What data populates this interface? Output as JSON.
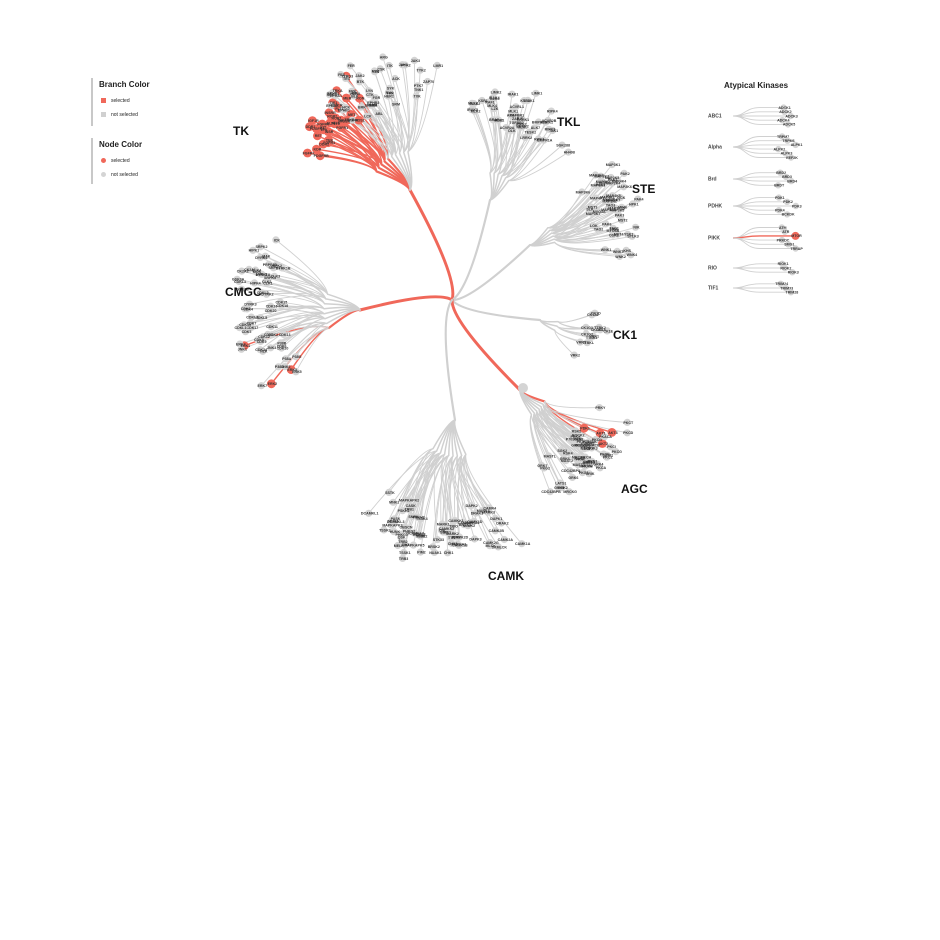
{
  "legend": {
    "branch_title": "Branch Color",
    "branch_selected": "selected",
    "branch_not_selected": "not selected",
    "node_title": "Node Color",
    "node_selected": "selected",
    "node_not_selected": "not selected"
  },
  "colors": {
    "selected": "#f0685a",
    "not_selected": "#d0d0d0",
    "node_not_selected": "#d4d4d4",
    "text": "#222222"
  },
  "groups": [
    {
      "name": "TK",
      "selected": true
    },
    {
      "name": "TKL",
      "selected": false
    },
    {
      "name": "STE",
      "selected": false
    },
    {
      "name": "CMGC",
      "selected": true
    },
    {
      "name": "CK1",
      "selected": false
    },
    {
      "name": "AGC",
      "selected": true
    },
    {
      "name": "CAMK",
      "selected": false
    }
  ],
  "kinase_labels": {
    "TK": [
      "FGFR1",
      "FGFR2",
      "FGFR3",
      "FGFR4",
      "RET",
      "PDGFRA",
      "PDGFRB",
      "KIT",
      "FLT3",
      "CSF1R",
      "KDR",
      "FLT1",
      "FLT4",
      "TIE1",
      "TEK",
      "MUSK",
      "INSR",
      "IGF1R",
      "INSRR",
      "ROS1",
      "LTK",
      "ALK",
      "DDR1",
      "DDR2",
      "TRKA",
      "TRKB",
      "TRKC",
      "ROR1",
      "ROR2",
      "MET",
      "RON",
      "AXL",
      "MER",
      "TYRO3",
      "EPHA1",
      "EPHA2",
      "EPHB1",
      "EPHB2",
      "EPHB3",
      "EPHB4",
      "EGFR",
      "HER2",
      "HER3",
      "HER4",
      "SRC",
      "YES",
      "FYN",
      "FGR",
      "LCK",
      "HCK",
      "BLK",
      "LYN",
      "FRK",
      "BRK",
      "SRM",
      "ABL",
      "ARG",
      "FES",
      "FER",
      "CSK",
      "CTK",
      "BTK",
      "TEC",
      "ITK",
      "BMX",
      "TXK",
      "JAK1",
      "JAK2",
      "JAK3",
      "TYK2",
      "FAK",
      "PYK2",
      "SYK",
      "ZAP70",
      "ACK",
      "TNK1",
      "PTK7",
      "RYK",
      "LMR1"
    ],
    "TKL": [
      "IRAK1",
      "IRAK2",
      "IRAK3",
      "IRAK4",
      "MLK1",
      "MLK2",
      "MLK3",
      "MLK4",
      "ZAK",
      "DLK",
      "LZK",
      "RAF1",
      "BRAF",
      "ARAF",
      "KSR1",
      "KSR2",
      "LIMK1",
      "LIMK2",
      "TESK1",
      "TESK2",
      "ALK1",
      "ALK2",
      "ALK4",
      "ALK7",
      "TGFBR1",
      "TGFBR2",
      "BMPR1A",
      "BMPR1B",
      "BMPR2",
      "ACVR2A",
      "ACVR2B",
      "ACVRL1",
      "MLKL",
      "RIPK1",
      "RIPK2",
      "RIPK3",
      "RIPK4",
      "LRRK1",
      "LRRK2",
      "ILK",
      "ANKK1",
      "SGK288",
      "TAK1",
      "HH498"
    ],
    "STE": [
      "MAP2K1",
      "MAP2K2",
      "MAP2K3",
      "MAP2K4",
      "MAP2K5",
      "MAP2K6",
      "MAP2K7",
      "MAP3K1",
      "MAP3K2",
      "MAP3K3",
      "MAP3K4",
      "MAP3K5",
      "MAP3K6",
      "MAP3K7",
      "MAP3K15",
      "MAP4K1",
      "MAP4K2",
      "MAP4K3",
      "MAP4K4",
      "MAP4K5",
      "PAK1",
      "PAK2",
      "PAK3",
      "PAK4",
      "PAK5",
      "PAK6",
      "MST1",
      "MST2",
      "MST3",
      "MST4",
      "SLK",
      "LOK",
      "TAO1",
      "TAO2",
      "TAO3",
      "OSR1",
      "STLK3",
      "YSK1",
      "MYO3A",
      "MYO3B",
      "TNIK",
      "MINK",
      "NIK",
      "HPK1",
      "GCK",
      "KHS",
      "WNK1",
      "WNK2",
      "WNK3",
      "WNK4"
    ],
    "CMGC": [
      "ERK1",
      "ERK2",
      "ERK3",
      "ERK4",
      "ERK5",
      "ERK7",
      "JNK1",
      "JNK2",
      "JNK3",
      "P38A",
      "P38B",
      "P38G",
      "P38D",
      "NLK",
      "CDK1",
      "CDK2",
      "CDK3",
      "CDK4",
      "CDK5",
      "CDK6",
      "CDK7",
      "CDK8",
      "CDK9",
      "CDK10",
      "CDK11",
      "CDK12",
      "CDK13",
      "CDK14",
      "CDK15",
      "CDK16",
      "CDK17",
      "CDK18",
      "CDK19",
      "CDK20",
      "CDKL1",
      "CDKL2",
      "CDKL3",
      "CDKL4",
      "CDKL5",
      "GSK3A",
      "GSK3B",
      "CK2A1",
      "CK2A2",
      "CLK1",
      "CLK2",
      "CLK3",
      "CLK4",
      "DYRK1A",
      "DYRK1B",
      "DYRK2",
      "DYRK3",
      "DYRK4",
      "HIPK1",
      "HIPK2",
      "HIPK3",
      "HIPK4",
      "PRPF4B",
      "SRPK1",
      "SRPK2",
      "SRPK3",
      "MAK",
      "ICK",
      "MOK"
    ],
    "CK1": [
      "CK1A",
      "CK1A2",
      "CK1D",
      "CK1E",
      "CK1G1",
      "CK1G2",
      "CK1G3",
      "TTBK1",
      "TTBK2",
      "VRK1",
      "VRK2",
      "VRK3",
      "TTBKL"
    ],
    "AGC": [
      "AKT1",
      "AKT2",
      "AKT3",
      "PDK1",
      "PKACA",
      "PKACB",
      "PKACG",
      "PRKX",
      "PRKY",
      "PKCA",
      "PKCB",
      "PKCG",
      "PKCD",
      "PKCE",
      "PKCH",
      "PKCT",
      "PKCI",
      "PKCZ",
      "PKN1",
      "PKN2",
      "PKN3",
      "RSK1",
      "RSK2",
      "RSK3",
      "RSK4",
      "MSK1",
      "MSK2",
      "P70S6K",
      "P70S6KB",
      "SGK1",
      "SGK2",
      "SGK3",
      "ROCK1",
      "ROCK2",
      "DMPK",
      "MRCKA",
      "MRCKB",
      "MRCKG",
      "CRIK",
      "LATS1",
      "LATS2",
      "NDR1",
      "NDR2",
      "MAST1",
      "MAST2",
      "MAST3",
      "MAST4",
      "MASTL",
      "GRK1",
      "GRK2",
      "GRK3",
      "GRK4",
      "GRK5",
      "GRK6",
      "GRK7",
      "PKG1",
      "PKG2",
      "CDC42BPA",
      "CDC42BPB"
    ],
    "CAMK": [
      "CAMK1A",
      "CAMK1B",
      "CAMK1D",
      "CAMK1G",
      "CAMK2A",
      "CAMK2B",
      "CAMK2D",
      "CAMK2G",
      "CAMK4",
      "CAMKK1",
      "CAMKK2",
      "DAPK1",
      "DAPK2",
      "DAPK3",
      "DRAK1",
      "DRAK2",
      "MLCK",
      "SKMLCK",
      "CHK1",
      "CHK2",
      "MARK1",
      "MARK2",
      "MARK3",
      "MARK4",
      "AMPKA1",
      "AMPKA2",
      "BRSK1",
      "BRSK2",
      "NUAK1",
      "NUAK2",
      "SIK1",
      "SIK2",
      "SIK3",
      "QIK",
      "QSK",
      "SNRK",
      "MELK",
      "PIM1",
      "PIM2",
      "PIM3",
      "PHKG1",
      "PHKG2",
      "TRIO",
      "OBSCN",
      "TTN",
      "MAPKAPK2",
      "MAPKAPK3",
      "MAPKAPK5",
      "MNK1",
      "MNK2",
      "PSKH1",
      "PSKH2",
      "RSKL1",
      "RSKL2",
      "STK33",
      "TSSK1",
      "TSSK2",
      "TSSK3",
      "TSSK4",
      "TRB1",
      "TRB2",
      "TRB3",
      "DCAMKL1",
      "DCAMKL2",
      "DCAMKL3",
      "PASK",
      "CASK",
      "HUNK",
      "SSTK"
    ]
  },
  "atypical": {
    "title": "Atypical Kinases",
    "families": [
      {
        "name": "ABC1",
        "kinases": [
          "ADCK1",
          "ADCK2",
          "ADCK3",
          "ADCK4",
          "ADCK5"
        ]
      },
      {
        "name": "Alpha",
        "kinases": [
          "TRPM7",
          "TRPM6",
          "ALPK1",
          "ALPK2",
          "ALPK3",
          "EEF2K"
        ]
      },
      {
        "name": "Brd",
        "kinases": [
          "BRD2",
          "BRD3",
          "BRD4",
          "BRDT"
        ]
      },
      {
        "name": "PDHK",
        "kinases": [
          "PDK1",
          "PDK2",
          "PDK3",
          "PDK4",
          "BCKDK"
        ]
      },
      {
        "name": "PIKK",
        "kinases": [
          "ATM",
          "ATR",
          "MTOR",
          "PRKDC",
          "SMG1",
          "TRRAP"
        ]
      },
      {
        "name": "RIO",
        "kinases": [
          "RIOK1",
          "RIOK2",
          "RIOK3"
        ]
      },
      {
        "name": "TIF1",
        "kinases": [
          "TRIM24",
          "TRIM33",
          "TRIM28"
        ]
      }
    ],
    "selected_kinase": "MTOR"
  }
}
